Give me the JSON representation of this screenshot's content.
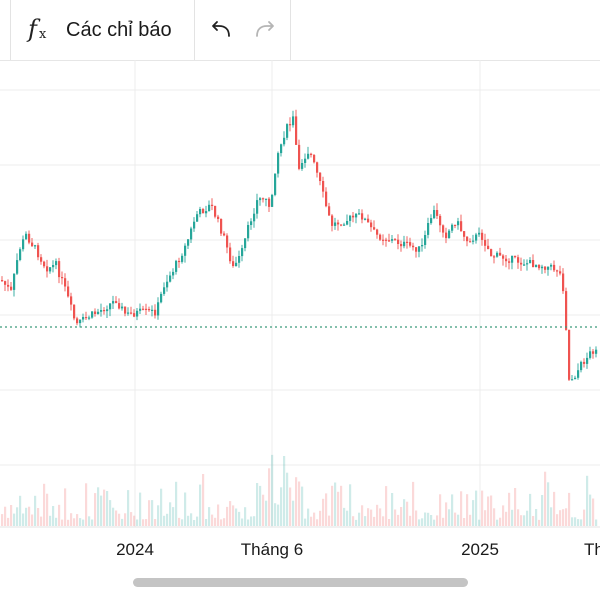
{
  "toolbar": {
    "indicators_label": "Các chỉ báo",
    "indicators_icon": "function-fx-icon",
    "undo_icon": "undo-icon",
    "redo_icon": "redo-icon"
  },
  "chart_data": {
    "type": "candlestick",
    "x_tick_labels": [
      "2024",
      "Tháng 6",
      "2025",
      "Th"
    ],
    "price_line": "dotted-green",
    "volume_bars": true,
    "colors": {
      "up": "#26a69a",
      "down": "#ef5350",
      "grid": "#ececec",
      "price_line": "#3a9a7a"
    }
  }
}
